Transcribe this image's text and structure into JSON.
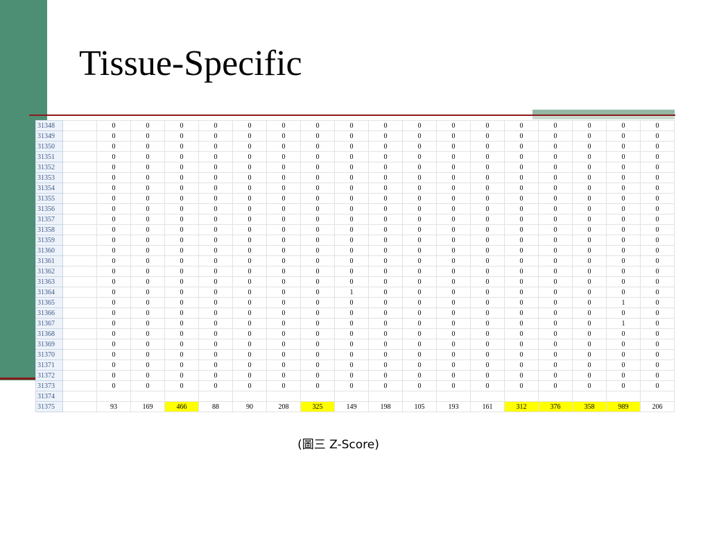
{
  "slide": {
    "title": "Tissue-Specific",
    "caption": "(圖三 Z-Score)",
    "colors": {
      "accent_green": "#4d8f75",
      "rule_red": "#8b1a1a",
      "highlight": "#ffff00"
    }
  },
  "sheet": {
    "rows": [
      {
        "id": "31348",
        "values": [
          "0",
          "0",
          "0",
          "0",
          "0",
          "0",
          "0",
          "0",
          "0",
          "0",
          "0",
          "0",
          "0",
          "0",
          "0",
          "0",
          "0"
        ]
      },
      {
        "id": "31349",
        "values": [
          "0",
          "0",
          "0",
          "0",
          "0",
          "0",
          "0",
          "0",
          "0",
          "0",
          "0",
          "0",
          "0",
          "0",
          "0",
          "0",
          "0"
        ]
      },
      {
        "id": "31350",
        "values": [
          "0",
          "0",
          "0",
          "0",
          "0",
          "0",
          "0",
          "0",
          "0",
          "0",
          "0",
          "0",
          "0",
          "0",
          "0",
          "0",
          "0"
        ]
      },
      {
        "id": "31351",
        "values": [
          "0",
          "0",
          "0",
          "0",
          "0",
          "0",
          "0",
          "0",
          "0",
          "0",
          "0",
          "0",
          "0",
          "0",
          "0",
          "0",
          "0"
        ]
      },
      {
        "id": "31352",
        "values": [
          "0",
          "0",
          "0",
          "0",
          "0",
          "0",
          "0",
          "0",
          "0",
          "0",
          "0",
          "0",
          "0",
          "0",
          "0",
          "0",
          "0"
        ]
      },
      {
        "id": "31353",
        "values": [
          "0",
          "0",
          "0",
          "0",
          "0",
          "0",
          "0",
          "0",
          "0",
          "0",
          "0",
          "0",
          "0",
          "0",
          "0",
          "0",
          "0"
        ]
      },
      {
        "id": "31354",
        "values": [
          "0",
          "0",
          "0",
          "0",
          "0",
          "0",
          "0",
          "0",
          "0",
          "0",
          "0",
          "0",
          "0",
          "0",
          "0",
          "0",
          "0"
        ]
      },
      {
        "id": "31355",
        "values": [
          "0",
          "0",
          "0",
          "0",
          "0",
          "0",
          "0",
          "0",
          "0",
          "0",
          "0",
          "0",
          "0",
          "0",
          "0",
          "0",
          "0"
        ]
      },
      {
        "id": "31356",
        "values": [
          "0",
          "0",
          "0",
          "0",
          "0",
          "0",
          "0",
          "0",
          "0",
          "0",
          "0",
          "0",
          "0",
          "0",
          "0",
          "0",
          "0"
        ]
      },
      {
        "id": "31357",
        "values": [
          "0",
          "0",
          "0",
          "0",
          "0",
          "0",
          "0",
          "0",
          "0",
          "0",
          "0",
          "0",
          "0",
          "0",
          "0",
          "0",
          "0"
        ]
      },
      {
        "id": "31358",
        "values": [
          "0",
          "0",
          "0",
          "0",
          "0",
          "0",
          "0",
          "0",
          "0",
          "0",
          "0",
          "0",
          "0",
          "0",
          "0",
          "0",
          "0"
        ]
      },
      {
        "id": "31359",
        "values": [
          "0",
          "0",
          "0",
          "0",
          "0",
          "0",
          "0",
          "0",
          "0",
          "0",
          "0",
          "0",
          "0",
          "0",
          "0",
          "0",
          "0"
        ]
      },
      {
        "id": "31360",
        "values": [
          "0",
          "0",
          "0",
          "0",
          "0",
          "0",
          "0",
          "0",
          "0",
          "0",
          "0",
          "0",
          "0",
          "0",
          "0",
          "0",
          "0"
        ]
      },
      {
        "id": "31361",
        "values": [
          "0",
          "0",
          "0",
          "0",
          "0",
          "0",
          "0",
          "0",
          "0",
          "0",
          "0",
          "0",
          "0",
          "0",
          "0",
          "0",
          "0"
        ]
      },
      {
        "id": "31362",
        "values": [
          "0",
          "0",
          "0",
          "0",
          "0",
          "0",
          "0",
          "0",
          "0",
          "0",
          "0",
          "0",
          "0",
          "0",
          "0",
          "0",
          "0"
        ]
      },
      {
        "id": "31363",
        "values": [
          "0",
          "0",
          "0",
          "0",
          "0",
          "0",
          "0",
          "0",
          "0",
          "0",
          "0",
          "0",
          "0",
          "0",
          "0",
          "0",
          "0"
        ]
      },
      {
        "id": "31364",
        "values": [
          "0",
          "0",
          "0",
          "0",
          "0",
          "0",
          "0",
          "1",
          "0",
          "0",
          "0",
          "0",
          "0",
          "0",
          "0",
          "0",
          "0"
        ]
      },
      {
        "id": "31365",
        "values": [
          "0",
          "0",
          "0",
          "0",
          "0",
          "0",
          "0",
          "0",
          "0",
          "0",
          "0",
          "0",
          "0",
          "0",
          "0",
          "1",
          "0"
        ]
      },
      {
        "id": "31366",
        "values": [
          "0",
          "0",
          "0",
          "0",
          "0",
          "0",
          "0",
          "0",
          "0",
          "0",
          "0",
          "0",
          "0",
          "0",
          "0",
          "0",
          "0"
        ]
      },
      {
        "id": "31367",
        "values": [
          "0",
          "0",
          "0",
          "0",
          "0",
          "0",
          "0",
          "0",
          "0",
          "0",
          "0",
          "0",
          "0",
          "0",
          "0",
          "1",
          "0"
        ]
      },
      {
        "id": "31368",
        "values": [
          "0",
          "0",
          "0",
          "0",
          "0",
          "0",
          "0",
          "0",
          "0",
          "0",
          "0",
          "0",
          "0",
          "0",
          "0",
          "0",
          "0"
        ]
      },
      {
        "id": "31369",
        "values": [
          "0",
          "0",
          "0",
          "0",
          "0",
          "0",
          "0",
          "0",
          "0",
          "0",
          "0",
          "0",
          "0",
          "0",
          "0",
          "0",
          "0"
        ]
      },
      {
        "id": "31370",
        "values": [
          "0",
          "0",
          "0",
          "0",
          "0",
          "0",
          "0",
          "0",
          "0",
          "0",
          "0",
          "0",
          "0",
          "0",
          "0",
          "0",
          "0"
        ]
      },
      {
        "id": "31371",
        "values": [
          "0",
          "0",
          "0",
          "0",
          "0",
          "0",
          "0",
          "0",
          "0",
          "0",
          "0",
          "0",
          "0",
          "0",
          "0",
          "0",
          "0"
        ]
      },
      {
        "id": "31372",
        "values": [
          "0",
          "0",
          "0",
          "0",
          "0",
          "0",
          "0",
          "0",
          "0",
          "0",
          "0",
          "0",
          "0",
          "0",
          "0",
          "0",
          "0"
        ]
      },
      {
        "id": "31373",
        "values": [
          "0",
          "0",
          "0",
          "0",
          "0",
          "0",
          "0",
          "0",
          "0",
          "0",
          "0",
          "0",
          "0",
          "0",
          "0",
          "0",
          "0"
        ]
      },
      {
        "id": "31374",
        "values": [
          "",
          "",
          "",
          "",
          "",
          "",
          "",
          "",
          "",
          "",
          "",
          "",
          "",
          "",
          "",
          "",
          ""
        ]
      },
      {
        "id": "31375",
        "values": [
          "93",
          "169",
          "466",
          "88",
          "90",
          "208",
          "325",
          "149",
          "198",
          "105",
          "193",
          "161",
          "312",
          "376",
          "358",
          "989",
          "206"
        ],
        "highlighted_columns": [
          2,
          6,
          12,
          13,
          14,
          15
        ]
      }
    ]
  }
}
